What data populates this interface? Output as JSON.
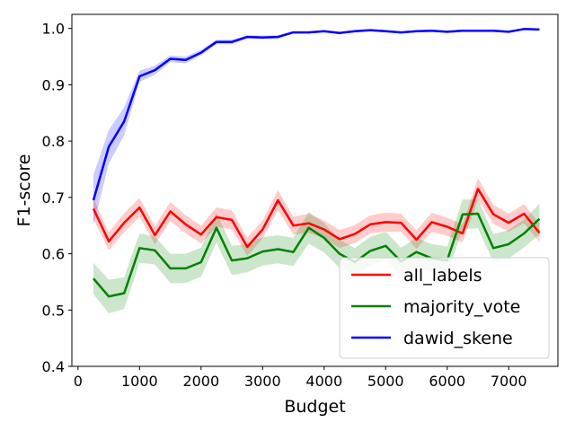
{
  "chart_data": {
    "type": "line",
    "xlabel": "Budget",
    "ylabel": "F1-score",
    "xlim": [
      -100,
      7800
    ],
    "ylim": [
      0.4,
      1.025
    ],
    "xticks": [
      0,
      1000,
      2000,
      3000,
      4000,
      5000,
      6000,
      7000
    ],
    "yticks": [
      0.4,
      0.5,
      0.6,
      0.7,
      0.8,
      0.9,
      1.0
    ],
    "xtick_labels": [
      "0",
      "1000",
      "2000",
      "3000",
      "4000",
      "5000",
      "6000",
      "7000"
    ],
    "ytick_labels": [
      "0.4",
      "0.5",
      "0.6",
      "0.7",
      "0.8",
      "0.9",
      "1.0"
    ],
    "grid": false,
    "legend_position": "lower-right",
    "x": [
      250,
      500,
      750,
      1000,
      1250,
      1500,
      1750,
      2000,
      2250,
      2500,
      2750,
      3000,
      3250,
      3500,
      3750,
      4000,
      4250,
      4500,
      4750,
      5000,
      5250,
      5500,
      5750,
      6000,
      6250,
      6500,
      6750,
      7000,
      7250,
      7500
    ],
    "series": [
      {
        "name": "all_labels",
        "color": "#ff0000",
        "values": [
          0.68,
          0.622,
          0.655,
          0.682,
          0.633,
          0.675,
          0.652,
          0.634,
          0.665,
          0.66,
          0.612,
          0.643,
          0.695,
          0.65,
          0.654,
          0.643,
          0.626,
          0.635,
          0.652,
          0.656,
          0.655,
          0.625,
          0.656,
          0.648,
          0.636,
          0.715,
          0.67,
          0.655,
          0.671,
          0.637
        ],
        "band": [
          0.018,
          0.016,
          0.017,
          0.017,
          0.016,
          0.017,
          0.016,
          0.016,
          0.017,
          0.017,
          0.016,
          0.016,
          0.018,
          0.016,
          0.017,
          0.016,
          0.016,
          0.016,
          0.016,
          0.017,
          0.016,
          0.016,
          0.017,
          0.016,
          0.016,
          0.019,
          0.017,
          0.016,
          0.017,
          0.016
        ]
      },
      {
        "name": "majority_vote",
        "color": "#008000",
        "values": [
          0.556,
          0.524,
          0.53,
          0.61,
          0.606,
          0.574,
          0.574,
          0.585,
          0.646,
          0.588,
          0.592,
          0.604,
          0.608,
          0.603,
          0.646,
          0.628,
          0.6,
          0.585,
          0.605,
          0.614,
          0.586,
          0.603,
          0.592,
          0.588,
          0.67,
          0.671,
          0.61,
          0.617,
          0.636,
          0.662
        ],
        "band": [
          0.028,
          0.03,
          0.028,
          0.026,
          0.025,
          0.026,
          0.026,
          0.026,
          0.026,
          0.026,
          0.025,
          0.025,
          0.025,
          0.025,
          0.028,
          0.026,
          0.025,
          0.025,
          0.025,
          0.025,
          0.025,
          0.025,
          0.025,
          0.025,
          0.026,
          0.026,
          0.025,
          0.025,
          0.025,
          0.027
        ]
      },
      {
        "name": "dawid_skene",
        "color": "#0000ff",
        "values": [
          0.695,
          0.79,
          0.835,
          0.915,
          0.926,
          0.946,
          0.944,
          0.957,
          0.976,
          0.976,
          0.985,
          0.984,
          0.985,
          0.993,
          0.993,
          0.995,
          0.992,
          0.995,
          0.997,
          0.995,
          0.993,
          0.995,
          0.996,
          0.994,
          0.996,
          0.996,
          0.996,
          0.994,
          0.999,
          0.998
        ],
        "band": [
          0.045,
          0.03,
          0.025,
          0.01,
          0.008,
          0.006,
          0.006,
          0.005,
          0.004,
          0.004,
          0.003,
          0.003,
          0.003,
          0.002,
          0.002,
          0.002,
          0.002,
          0.002,
          0.002,
          0.002,
          0.002,
          0.002,
          0.002,
          0.002,
          0.002,
          0.002,
          0.002,
          0.002,
          0.001,
          0.001
        ]
      }
    ]
  }
}
